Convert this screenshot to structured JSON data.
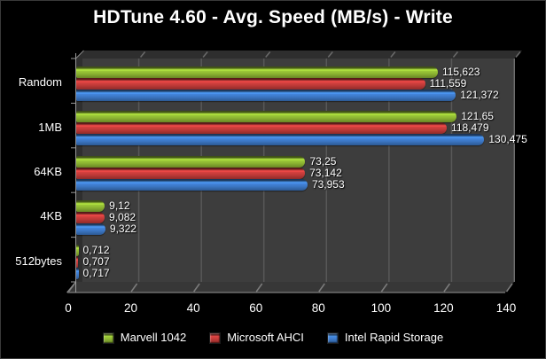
{
  "title": "HDTune 4.60 - Avg. Speed (MB/s) - Write",
  "chart_data": {
    "type": "bar",
    "orientation": "horizontal",
    "title": "HDTune 4.60 - Avg. Speed (MB/s) - Write",
    "categories": [
      "Random",
      "1MB",
      "64KB",
      "4KB",
      "512bytes"
    ],
    "series": [
      {
        "name": "Marvell 1042",
        "color": "#8CB432",
        "values": [
          115.623,
          121.65,
          73.25,
          9.12,
          0.712
        ],
        "labels": [
          "115,623",
          "121,65",
          "73,25",
          "9,12",
          "0,712"
        ]
      },
      {
        "name": "Microsoft AHCI",
        "color": "#C13A38",
        "values": [
          111.559,
          118.479,
          73.142,
          9.082,
          0.707
        ],
        "labels": [
          "111,559",
          "118,479",
          "73,142",
          "9,082",
          "0,707"
        ]
      },
      {
        "name": "Intel Rapid Storage",
        "color": "#3C78C6",
        "values": [
          121.372,
          130.475,
          73.953,
          9.322,
          0.717
        ],
        "labels": [
          "121,372",
          "130,475",
          "73,953",
          "9,322",
          "0,717"
        ]
      }
    ],
    "xlim": [
      0,
      140
    ],
    "xticks": [
      0,
      20,
      40,
      60,
      80,
      100,
      120,
      140
    ],
    "grid": true,
    "legend_position": "bottom",
    "background_color": "#000000",
    "plot_background_color": "#3D3D3D"
  }
}
